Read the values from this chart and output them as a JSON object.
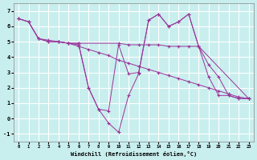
{
  "xlabel": "Windchill (Refroidissement éolien,°C)",
  "bg_color": "#c9eeee",
  "line_color": "#993399",
  "grid_color": "#ffffff",
  "xlim": [
    -0.5,
    23.5
  ],
  "ylim": [
    -1.5,
    7.5
  ],
  "yticks": [
    -1,
    0,
    1,
    2,
    3,
    4,
    5,
    6,
    7
  ],
  "xticks": [
    0,
    1,
    2,
    3,
    4,
    5,
    6,
    7,
    8,
    9,
    10,
    11,
    12,
    13,
    14,
    15,
    16,
    17,
    18,
    19,
    20,
    21,
    22,
    23
  ],
  "series": [
    {
      "x": [
        0,
        1,
        2,
        3,
        4,
        5,
        6,
        7,
        8,
        9,
        10,
        11,
        12,
        13,
        14,
        15,
        16,
        17,
        18,
        19,
        20,
        21,
        22,
        23
      ],
      "y": [
        6.5,
        6.3,
        5.2,
        5.0,
        5.0,
        4.9,
        4.9,
        2.0,
        0.6,
        0.5,
        4.8,
        2.9,
        3.0,
        6.4,
        6.8,
        6.0,
        6.3,
        6.8,
        4.7,
        2.7,
        1.5,
        1.5,
        1.3,
        1.3
      ]
    },
    {
      "x": [
        0,
        1,
        2,
        3,
        4,
        5,
        6,
        10,
        11,
        12,
        13,
        14,
        15,
        16,
        17,
        18,
        23
      ],
      "y": [
        6.5,
        6.3,
        5.2,
        5.1,
        5.0,
        4.9,
        4.9,
        4.9,
        4.8,
        4.8,
        4.8,
        4.8,
        4.7,
        4.7,
        4.7,
        4.7,
        1.3
      ]
    },
    {
      "x": [
        0,
        1,
        2,
        3,
        4,
        5,
        6,
        7,
        8,
        9,
        10,
        11,
        12,
        13,
        14,
        15,
        16,
        17,
        18,
        19,
        20,
        21,
        22,
        23
      ],
      "y": [
        6.5,
        6.3,
        5.2,
        5.0,
        5.0,
        4.9,
        4.7,
        4.5,
        4.3,
        4.1,
        3.8,
        3.6,
        3.4,
        3.2,
        3.0,
        2.8,
        2.6,
        2.4,
        2.2,
        2.0,
        1.8,
        1.6,
        1.4,
        1.3
      ]
    },
    {
      "x": [
        4,
        5,
        6,
        7,
        8,
        9,
        10,
        11,
        12,
        13,
        14,
        15,
        16,
        17,
        18,
        19,
        20,
        21,
        22,
        23
      ],
      "y": [
        5.0,
        4.9,
        4.8,
        2.0,
        0.6,
        -0.3,
        -0.9,
        1.5,
        2.9,
        6.4,
        6.8,
        6.0,
        6.3,
        6.8,
        4.7,
        3.5,
        2.7,
        1.5,
        1.3,
        1.3
      ]
    }
  ]
}
